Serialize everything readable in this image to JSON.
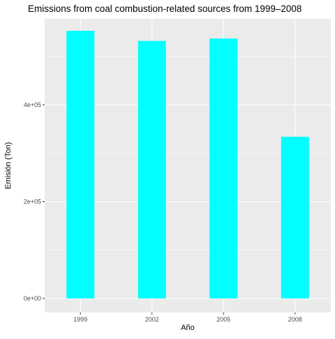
{
  "chart_data": {
    "type": "bar",
    "title": "Emissions from coal combustion-related sources from 1999–2008",
    "xlabel": "Año",
    "ylabel": "Emisión (Ton)",
    "categories": [
      "1999",
      "2002",
      "2005",
      "2008"
    ],
    "values": [
      553000,
      532000,
      537000,
      334000
    ],
    "ylim": [
      0,
      600000
    ],
    "yticks": [
      0,
      200000,
      400000
    ],
    "ytick_labels": [
      "0e+00",
      "2e+05",
      "4e+05"
    ],
    "grid": true,
    "legend": "none",
    "colors": {
      "bar": "#00FFFF",
      "panel_background": "#EBEBEB",
      "grid_major": "#FFFFFF",
      "tick_mark": "#333333",
      "tick_text": "#4D4D4D"
    }
  }
}
